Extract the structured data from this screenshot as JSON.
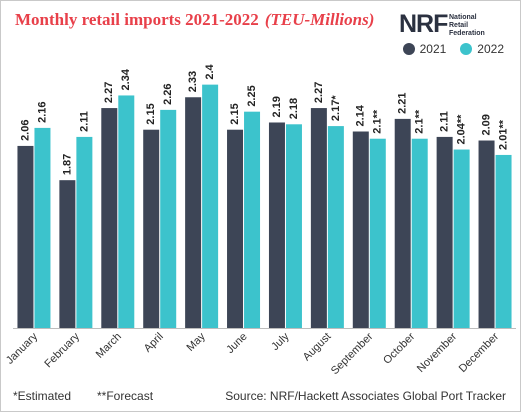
{
  "title": "Monthly retail imports 2021-2022",
  "title_unit": "(TEU-Millions)",
  "logo": {
    "mark": "NRF",
    "lines": [
      "National",
      "Retail",
      "Federation"
    ]
  },
  "footnotes": {
    "estimated": "*Estimated",
    "forecast": "**Forecast",
    "source": "Source: NRF/Hackett Associates Global Port Tracker"
  },
  "chart_data": {
    "type": "bar",
    "categories": [
      "January",
      "February",
      "March",
      "April",
      "May",
      "June",
      "July",
      "August",
      "September",
      "October",
      "November",
      "December"
    ],
    "series": [
      {
        "name": "2021",
        "color": "#3d4556",
        "values": [
          2.06,
          1.87,
          2.27,
          2.15,
          2.33,
          2.15,
          2.19,
          2.27,
          2.14,
          2.21,
          2.11,
          2.09
        ],
        "labels": [
          "2.06",
          "1.87",
          "2.27",
          "2.15",
          "2.33",
          "2.15",
          "2.19",
          "2.27",
          "2.14",
          "2.21",
          "2.11",
          "2.09"
        ]
      },
      {
        "name": "2022",
        "color": "#3cc3cc",
        "values": [
          2.16,
          2.11,
          2.34,
          2.26,
          2.4,
          2.25,
          2.18,
          2.17,
          2.1,
          2.1,
          2.04,
          2.01
        ],
        "labels": [
          "2.16",
          "2.11",
          "2.34",
          "2.26",
          "2.4",
          "2.25",
          "2.18",
          "2.17*",
          "2.1**",
          "2.1**",
          "2.04**",
          "2.01**"
        ]
      }
    ],
    "title": "Monthly retail imports 2021-2022",
    "ylim": [
      1.05,
      2.52
    ],
    "grid": false,
    "legend": "top-right"
  }
}
